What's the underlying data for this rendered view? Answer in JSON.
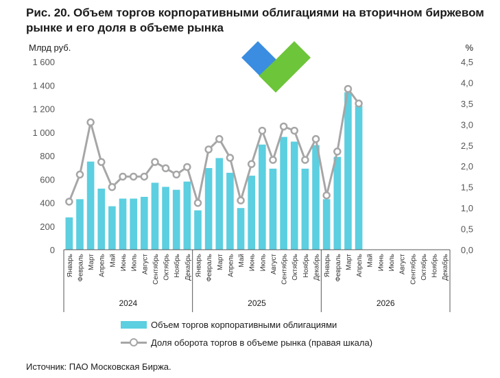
{
  "title": "Рис. 20. Объем торгов корпоративными облигациями на вторичном биржевом рынке и его доля в объеме рынка",
  "source": "Источник: ПАО Московская Биржа.",
  "logo": {
    "name": "heart-logo",
    "colors": [
      "#3a8de0",
      "#6dc53a"
    ]
  },
  "colors": {
    "bar": "#5ccfe0",
    "line": "#a6a6a6",
    "axis": "#555555"
  },
  "chart_data": {
    "type": "bar",
    "title": "Рис. 20. Объем торгов корпоративными облигациями на вторичном биржевом рынке и его доля в объеме рынка",
    "ylabel": "Млрд руб.",
    "y2label": "%",
    "ylim": [
      0,
      1600
    ],
    "y2lim": [
      0,
      4.5
    ],
    "yticks": [
      "0",
      "200",
      "400",
      "600",
      "800",
      "1 000",
      "1 200",
      "1 400",
      "1 600"
    ],
    "y2ticks": [
      "0,0",
      "0,5",
      "1,0",
      "1,5",
      "2,0",
      "2,5",
      "3,0",
      "3,5",
      "4,0",
      "4,5"
    ],
    "years": [
      "2024",
      "2025",
      "2026"
    ],
    "categories": [
      "Январь",
      "Февраль",
      "Март",
      "Апрель",
      "Май",
      "Июнь",
      "Июль",
      "Август",
      "Сентябрь",
      "Октябрь",
      "Ноябрь",
      "Декабрь",
      "Январь",
      "Февраль",
      "Март",
      "Апрель",
      "Май",
      "Июнь",
      "Июль",
      "Август",
      "Сентябрь",
      "Октябрь",
      "Ноябрь",
      "Декабрь",
      "Январь",
      "Февраль",
      "Март",
      "Апрель",
      "Май",
      "Июнь",
      "Июль",
      "Август",
      "Сентябрь",
      "Октябрь",
      "Ноябрь",
      "Декабрь"
    ],
    "legend_position": "bottom",
    "grid": false,
    "series": [
      {
        "name": "Объем торгов корпоративными облигациями",
        "type": "bar",
        "axis": "left",
        "values": [
          275,
          430,
          750,
          520,
          370,
          435,
          435,
          450,
          570,
          535,
          510,
          580,
          335,
          695,
          780,
          655,
          355,
          630,
          895,
          690,
          960,
          920,
          690,
          890,
          430,
          790,
          1340,
          1225,
          null,
          null,
          null,
          null,
          null,
          null,
          null,
          null
        ]
      },
      {
        "name": "Доля оборота торгов в объеме рынка (правая шкала)",
        "type": "line",
        "axis": "right",
        "values": [
          1.15,
          1.8,
          3.05,
          2.1,
          1.5,
          1.75,
          1.75,
          1.75,
          2.1,
          1.95,
          1.8,
          1.98,
          1.12,
          2.4,
          2.65,
          2.2,
          1.18,
          2.05,
          2.85,
          2.15,
          2.95,
          2.85,
          2.15,
          2.65,
          1.3,
          2.35,
          3.85,
          3.5,
          null,
          null,
          null,
          null,
          null,
          null,
          null,
          null
        ]
      }
    ]
  }
}
